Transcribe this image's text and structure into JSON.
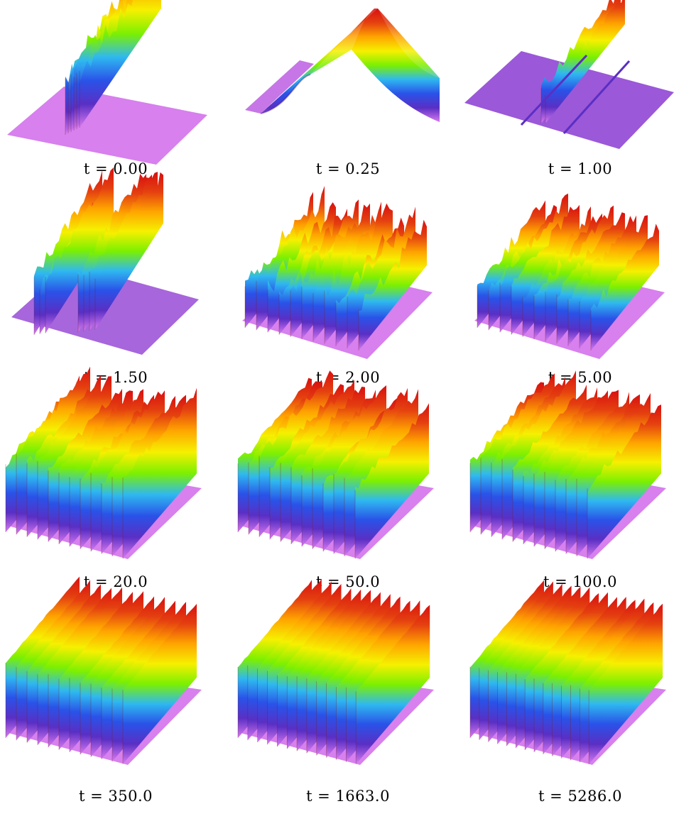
{
  "panels": [
    {
      "caption": "t = 0.00",
      "variable": "t",
      "value": "0.00",
      "surface": "initial-stripe"
    },
    {
      "caption": "t = 0.25",
      "variable": "t",
      "value": "0.25",
      "surface": "diffused-ridge"
    },
    {
      "caption": "t = 1.00",
      "variable": "t",
      "value": "1.00",
      "surface": "single-peak"
    },
    {
      "caption": "t = 1.50",
      "variable": "t",
      "value": "1.50",
      "surface": "split-peaks"
    },
    {
      "caption": "t = 2.00",
      "variable": "t",
      "value": "2.00",
      "surface": "many-ridges"
    },
    {
      "caption": "t = 5.00",
      "variable": "t",
      "value": "5.00",
      "surface": "many-ridges"
    },
    {
      "caption": "t = 20.0",
      "variable": "t",
      "value": "20.0",
      "surface": "wavy-ridges"
    },
    {
      "caption": "t = 50.0",
      "variable": "t",
      "value": "50.0",
      "surface": "wavy-ridges"
    },
    {
      "caption": "t = 100.0",
      "variable": "t",
      "value": "100.0",
      "surface": "wavy-ridges"
    },
    {
      "caption": "t = 350.0",
      "variable": "t",
      "value": "350.0",
      "surface": "regular-ridges"
    },
    {
      "caption": "t = 1663.0",
      "variable": "t",
      "value": "1663.0",
      "surface": "regular-ridges"
    },
    {
      "caption": "t = 5286.0",
      "variable": "t",
      "value": "5286.0",
      "surface": "regular-ridges"
    }
  ],
  "colormap": [
    "#d87af0",
    "#5a2fc4",
    "#2a52e8",
    "#2fb8f0",
    "#7cf000",
    "#f6f000",
    "#ffa500",
    "#e44010",
    "#d81010"
  ]
}
